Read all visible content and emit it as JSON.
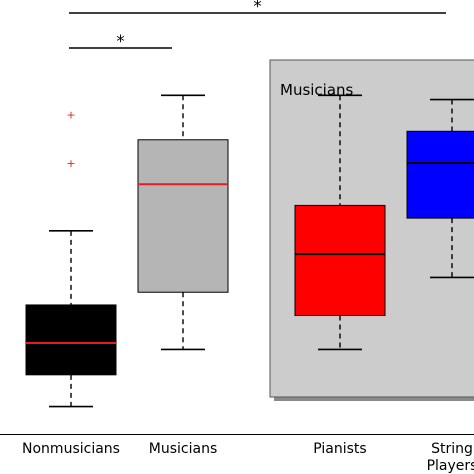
{
  "chart_data": {
    "type": "box",
    "categories": [
      "Nonmusicians",
      "Musicians",
      "Pianists",
      "String Players"
    ],
    "boxes": [
      {
        "category": "Nonmusicians",
        "whisker_low": 0.6,
        "q1": 1.35,
        "median": 2.1,
        "q3": 3.0,
        "whisker_high": 4.75,
        "outliers": [
          7.5,
          6.35
        ],
        "box_color": "#000000",
        "median_color": "#e02020"
      },
      {
        "category": "Musicians",
        "whisker_low": 1.95,
        "q1": 3.3,
        "median": 5.85,
        "q3": 6.9,
        "whisker_high": 7.95,
        "outliers": [],
        "box_color": "#b5b5b5",
        "median_color": "#e02020"
      },
      {
        "category": "Pianists",
        "whisker_low": 1.95,
        "q1": 2.75,
        "median": 4.2,
        "q3": 5.35,
        "whisker_high": 7.95,
        "outliers": [],
        "box_color": "#ff0000",
        "median_color": "#000000"
      },
      {
        "category": "String Players",
        "whisker_low": 3.65,
        "q1": 5.05,
        "median": 6.35,
        "q3": 7.1,
        "whisker_high": 7.85,
        "outliers": [],
        "box_color": "#0000ff",
        "median_color": "#000000"
      }
    ],
    "group_panel": {
      "label": "Musicians",
      "covers": [
        "Pianists",
        "String Players"
      ],
      "fill": "#cccccc"
    },
    "significance": [
      {
        "from": "Nonmusicians",
        "to": "Musicians",
        "marker": "*"
      },
      {
        "from": "Nonmusicians",
        "to": "String Players",
        "marker": "*"
      }
    ],
    "ylim": [
      0,
      10.2
    ],
    "grid": false
  }
}
